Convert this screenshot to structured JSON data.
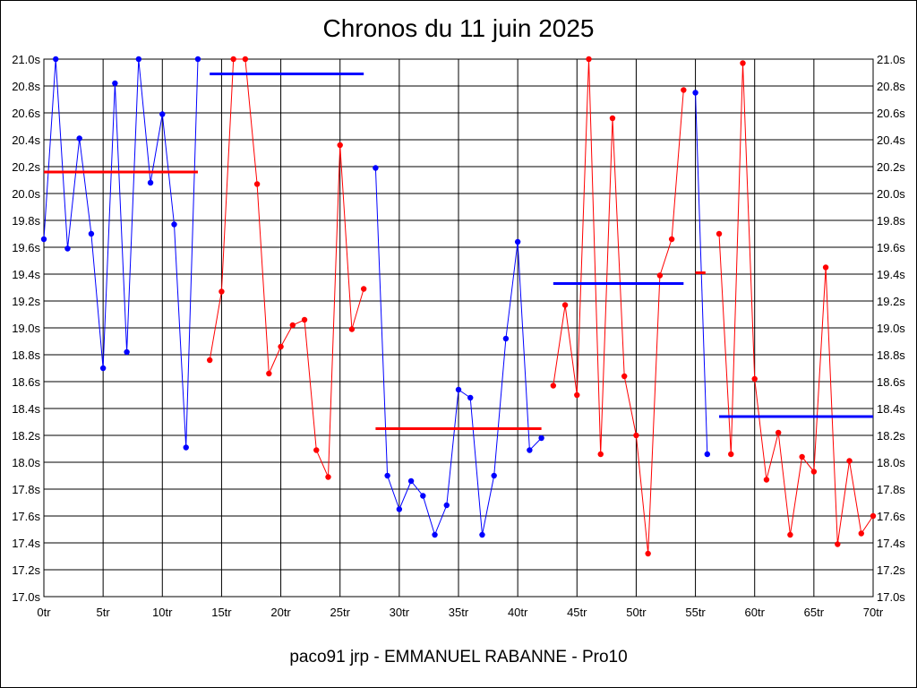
{
  "chart_data": {
    "type": "line",
    "title": "Chronos du 11 juin 2025",
    "subtitle": "paco91 jrp - EMMANUEL RABANNE - Pro10",
    "xlim": [
      0,
      70
    ],
    "ylim": [
      17.0,
      21.0
    ],
    "x_ticks": [
      0,
      5,
      10,
      15,
      20,
      25,
      30,
      35,
      40,
      45,
      50,
      55,
      60,
      65,
      70
    ],
    "x_tick_labels": [
      "0tr",
      "5tr",
      "10tr",
      "15tr",
      "20tr",
      "25tr",
      "30tr",
      "35tr",
      "40tr",
      "45tr",
      "50tr",
      "55tr",
      "60tr",
      "65tr",
      "70tr"
    ],
    "y_ticks": [
      17.0,
      17.2,
      17.4,
      17.6,
      17.8,
      18.0,
      18.2,
      18.4,
      18.6,
      18.8,
      19.0,
      19.2,
      19.4,
      19.6,
      19.8,
      20.0,
      20.2,
      20.4,
      20.6,
      20.8,
      21.0
    ],
    "y_tick_labels": [
      "17.0s",
      "17.2s",
      "17.4s",
      "17.6s",
      "17.8s",
      "18.0s",
      "18.2s",
      "18.4s",
      "18.6s",
      "18.8s",
      "19.0s",
      "19.2s",
      "19.4s",
      "19.6s",
      "19.8s",
      "20.0s",
      "20.2s",
      "20.4s",
      "20.6s",
      "20.8s",
      "21.0s"
    ],
    "grid": true,
    "series": [
      {
        "color": "#0000ff",
        "points": [
          [
            0,
            19.66
          ],
          [
            1,
            21.0
          ],
          [
            2,
            19.59
          ],
          [
            3,
            20.41
          ],
          [
            4,
            19.7
          ],
          [
            5,
            18.7
          ],
          [
            6,
            20.82
          ],
          [
            7,
            18.82
          ],
          [
            8,
            21.0
          ],
          [
            9,
            20.08
          ],
          [
            10,
            20.59
          ],
          [
            11,
            19.77
          ],
          [
            12,
            18.11
          ],
          [
            13,
            21.0
          ]
        ]
      },
      {
        "color": "#ff0000",
        "points": [
          [
            14,
            18.76
          ],
          [
            15,
            19.27
          ],
          [
            16,
            21.0
          ],
          [
            17,
            21.0
          ],
          [
            18,
            20.07
          ],
          [
            19,
            18.66
          ],
          [
            20,
            18.86
          ],
          [
            21,
            19.02
          ],
          [
            22,
            19.06
          ],
          [
            23,
            18.09
          ],
          [
            24,
            17.89
          ],
          [
            25,
            20.36
          ],
          [
            26,
            18.99
          ],
          [
            27,
            19.29
          ]
        ]
      },
      {
        "color": "#0000ff",
        "points": [
          [
            28,
            20.19
          ],
          [
            29,
            17.9
          ],
          [
            30,
            17.65
          ],
          [
            31,
            17.86
          ],
          [
            32,
            17.75
          ],
          [
            33,
            17.46
          ],
          [
            34,
            17.68
          ],
          [
            35,
            18.54
          ],
          [
            36,
            18.48
          ],
          [
            37,
            17.46
          ],
          [
            38,
            17.9
          ],
          [
            39,
            18.92
          ],
          [
            40,
            19.64
          ],
          [
            41,
            18.09
          ],
          [
            42,
            18.18
          ]
        ]
      },
      {
        "color": "#ff0000",
        "points": [
          [
            43,
            18.57
          ],
          [
            44,
            19.17
          ],
          [
            45,
            18.5
          ],
          [
            46,
            21.0
          ],
          [
            47,
            18.06
          ],
          [
            48,
            20.56
          ],
          [
            49,
            18.64
          ],
          [
            50,
            18.2
          ],
          [
            51,
            17.32
          ],
          [
            52,
            19.39
          ],
          [
            53,
            19.66
          ],
          [
            54,
            20.77
          ]
        ]
      },
      {
        "color": "#0000ff",
        "points": [
          [
            55,
            20.75
          ],
          [
            56,
            18.06
          ]
        ]
      },
      {
        "color": "#ff0000",
        "points": [
          [
            57,
            19.7
          ],
          [
            58,
            18.06
          ],
          [
            59,
            20.97
          ],
          [
            60,
            18.62
          ],
          [
            61,
            17.87
          ],
          [
            62,
            18.22
          ],
          [
            63,
            17.46
          ],
          [
            64,
            18.04
          ],
          [
            65,
            17.93
          ],
          [
            66,
            19.45
          ],
          [
            67,
            17.39
          ],
          [
            68,
            18.01
          ],
          [
            69,
            17.47
          ],
          [
            70,
            17.6
          ]
        ]
      }
    ],
    "average_lines": [
      {
        "color": "#ff0000",
        "x": [
          0,
          13
        ],
        "y": 20.16
      },
      {
        "color": "#0000ff",
        "x": [
          14,
          27
        ],
        "y": 20.89
      },
      {
        "color": "#ff0000",
        "x": [
          28,
          42
        ],
        "y": 18.25
      },
      {
        "color": "#0000ff",
        "x": [
          43,
          54
        ],
        "y": 19.33
      },
      {
        "color": "#ff0000",
        "x": [
          55,
          56
        ],
        "y": 19.41
      },
      {
        "color": "#0000ff",
        "x": [
          57,
          70
        ],
        "y": 18.34
      }
    ]
  }
}
